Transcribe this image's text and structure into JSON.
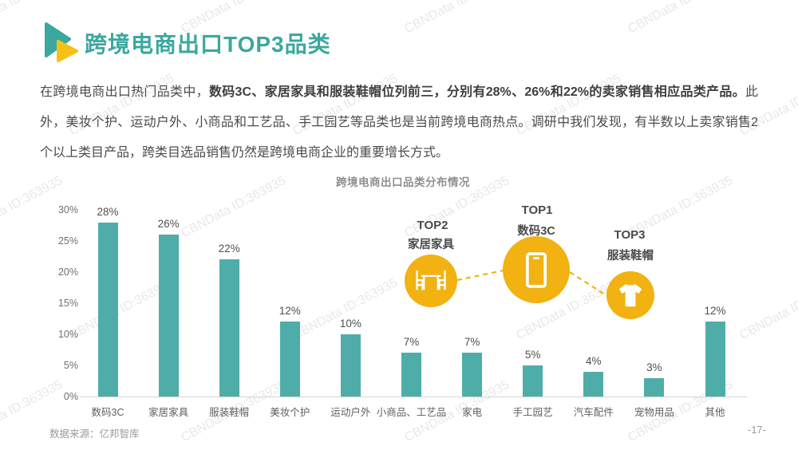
{
  "watermark": {
    "text": "CBNData ID:363935"
  },
  "header": {
    "title": "跨境电商出口TOP3品类"
  },
  "intro": {
    "normal_prefix": "在跨境电商出口热门品类中，",
    "bold_part": "数码3C、家居家具和服装鞋帽位列前三，分别有28%、26%和22%的卖家销售相应品类产品。",
    "rest": "此外，美妆个护、运动户外、小商品和工艺品、手工园艺等品类也是当前跨境电商热点。调研中我们发现，有半数以上卖家销售2个以上类目产品，跨类目选品销售仍然是跨境电商企业的重要增长方式。"
  },
  "chart_data": {
    "type": "bar",
    "title": "跨境电商出口品类分布情况",
    "categories": [
      "数码3C",
      "家居家具",
      "服装鞋帽",
      "美妆个护",
      "运动户外",
      "小商品、工艺品",
      "家电",
      "手工园艺",
      "汽车配件",
      "宠物用品",
      "其他"
    ],
    "values": [
      28,
      26,
      22,
      12,
      10,
      7,
      7,
      5,
      4,
      3,
      12
    ],
    "value_labels": [
      "28%",
      "26%",
      "22%",
      "12%",
      "10%",
      "7%",
      "7%",
      "5%",
      "4%",
      "3%",
      "12%"
    ],
    "yticks": [
      "0%",
      "5%",
      "10%",
      "15%",
      "20%",
      "25%",
      "30%"
    ],
    "ylim": [
      0,
      30
    ],
    "xlabel": "",
    "ylabel": "",
    "grid": false,
    "legend": null,
    "bar_color": "#4fada9"
  },
  "callouts": {
    "top1": {
      "rank": "TOP1",
      "name": "数码3C",
      "icon": "smartphone-icon"
    },
    "top2": {
      "rank": "TOP2",
      "name": "家居家具",
      "icon": "furniture-icon"
    },
    "top3": {
      "rank": "TOP3",
      "name": "服装鞋帽",
      "icon": "tshirt-icon"
    }
  },
  "footer": {
    "source": "数据来源：亿邦智库",
    "page": "-17-"
  },
  "colors": {
    "title_teal": "#3ba89f",
    "bar_teal": "#4fada9",
    "callout_yellow": "#f2b212",
    "icon_yellow": "#f6c117"
  }
}
